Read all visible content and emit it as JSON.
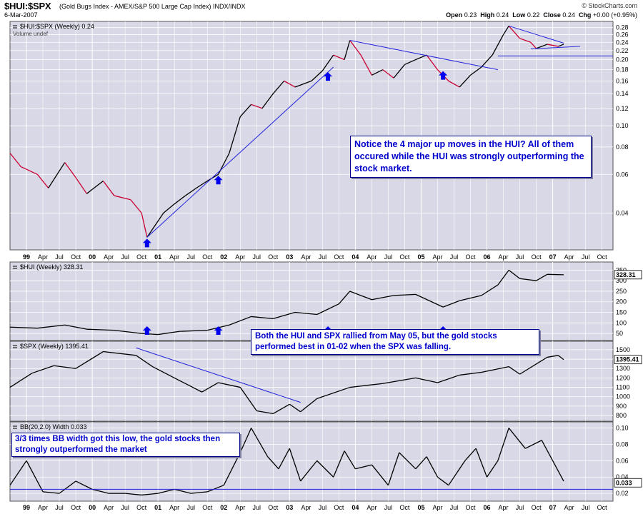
{
  "header": {
    "symbol": "$HUI:$SPX",
    "subtitle": "(Gold Bugs Index - AMEX/S&P 500 Large Cap Index) INDX/INDX",
    "date": "6-Mar-2007",
    "brand": "© StockCharts.com",
    "open_label": "Open",
    "open": "0.23",
    "high_label": "High",
    "high": "0.24",
    "low_label": "Low",
    "low": "0.22",
    "close_label": "Close",
    "close": "0.24",
    "chg_label": "Chg",
    "chg": "+0.00 (+0.95%)"
  },
  "panels": {
    "ratio": {
      "label": "$HUI:$SPX (Weekly) 0.24",
      "volume_note": "Volume undef"
    },
    "hui": {
      "label": "$HUI (Weekly) 328.31",
      "last": "328.31"
    },
    "spx": {
      "label": "$SPX (Weekly) 1395.41",
      "last": "1395.41"
    },
    "bbw": {
      "label": "BB(20,2.0) Width 0.033",
      "last": "0.033"
    }
  },
  "notes": {
    "note1": "Notice the 4 major up moves in the HUI? All of them occured while the HUI was strongly outperforming the stock market.",
    "note2": "Both the HUI and SPX rallied from May 05, but the gold stocks performed best in 01-02 when the SPX was falling.",
    "note3": "3/3 times BB width got this low, the gold stocks then strongly outperformed the market"
  },
  "colors": {
    "background": "#d8d8e6",
    "grid": "#ffffff",
    "trendline": "#2222dd",
    "rising": "#000000",
    "falling": "#cc0033",
    "arrow": "#0000ee",
    "note_text": "#0000cc"
  },
  "chart_data": [
    {
      "type": "line",
      "title": "$HUI:$SPX (Weekly) 0.24",
      "scale": "log",
      "ylim": [
        0.028,
        0.29
      ],
      "yticks": [
        "0.28",
        "0.26",
        "0.24",
        "0.22",
        "0.20",
        "0.18",
        "0.16",
        "0.14",
        "0.12",
        "0.10",
        "0.08",
        "0.06",
        "0.04"
      ],
      "x": [
        "1998-10",
        "1998-12",
        "1999-03",
        "1999-05",
        "1999-08",
        "1999-10",
        "1999-12",
        "2000-03",
        "2000-05",
        "2000-08",
        "2000-10",
        "2000-11",
        "2001-02",
        "2001-04",
        "2001-06",
        "2001-08",
        "2001-10",
        "2001-12",
        "2002-02",
        "2002-04",
        "2002-06",
        "2002-08",
        "2002-10",
        "2002-12",
        "2003-02",
        "2003-05",
        "2003-07",
        "2003-09",
        "2003-11",
        "2003-12",
        "2004-02",
        "2004-04",
        "2004-06",
        "2004-08",
        "2004-10",
        "2004-12",
        "2005-02",
        "2005-04",
        "2005-06",
        "2005-08",
        "2005-10",
        "2005-12",
        "2006-02",
        "2006-04",
        "2006-05",
        "2006-07",
        "2006-09",
        "2006-10",
        "2006-12",
        "2007-02",
        "2007-03"
      ],
      "values": [
        0.075,
        0.065,
        0.06,
        0.052,
        0.068,
        0.058,
        0.049,
        0.056,
        0.048,
        0.046,
        0.04,
        0.031,
        0.04,
        0.044,
        0.048,
        0.052,
        0.056,
        0.06,
        0.075,
        0.11,
        0.125,
        0.12,
        0.14,
        0.16,
        0.15,
        0.16,
        0.178,
        0.21,
        0.2,
        0.245,
        0.21,
        0.17,
        0.18,
        0.165,
        0.19,
        0.2,
        0.21,
        0.18,
        0.16,
        0.15,
        0.17,
        0.185,
        0.21,
        0.26,
        0.285,
        0.25,
        0.24,
        0.225,
        0.235,
        0.23,
        0.235
      ],
      "trendlines": [
        {
          "from": [
            "2000-11",
            0.031
          ],
          "to": [
            "2003-09",
            0.185
          ]
        },
        {
          "from": [
            "2003-12",
            0.245
          ],
          "to": [
            "2006-03",
            0.18
          ]
        },
        {
          "from": [
            "2006-03",
            0.208
          ],
          "to": [
            "2007-12",
            0.208
          ]
        },
        {
          "from": [
            "2006-05",
            0.285
          ],
          "to": [
            "2007-03",
            0.238
          ]
        },
        {
          "from": [
            "2006-09",
            0.224
          ],
          "to": [
            "2007-06",
            0.23
          ]
        }
      ],
      "markers": [
        "2000-11",
        "2001-12",
        "2003-08",
        "2005-05"
      ]
    },
    {
      "type": "line",
      "title": "$HUI (Weekly) 328.31",
      "ylim": [
        30,
        375
      ],
      "yticks": [
        "350",
        "300",
        "250",
        "200",
        "150",
        "100",
        "50"
      ],
      "x": [
        "1998-10",
        "1999-03",
        "1999-08",
        "1999-12",
        "2000-05",
        "2000-10",
        "2001-01",
        "2001-05",
        "2001-10",
        "2002-02",
        "2002-06",
        "2002-10",
        "2003-02",
        "2003-06",
        "2003-10",
        "2003-12",
        "2004-04",
        "2004-08",
        "2004-12",
        "2005-05",
        "2005-08",
        "2005-12",
        "2006-03",
        "2006-05",
        "2006-07",
        "2006-10",
        "2006-12",
        "2007-03"
      ],
      "values": [
        80,
        75,
        90,
        70,
        65,
        50,
        45,
        60,
        65,
        90,
        130,
        120,
        150,
        140,
        190,
        250,
        210,
        230,
        235,
        175,
        205,
        230,
        280,
        350,
        310,
        300,
        330,
        328
      ],
      "markers": [
        "2000-11",
        "2001-12",
        "2003-08",
        "2005-05"
      ]
    },
    {
      "type": "line",
      "title": "$SPX (Weekly) 1395.41",
      "ylim": [
        770,
        1560
      ],
      "yticks": [
        "1500",
        "1400",
        "1300",
        "1200",
        "1100",
        "1000",
        "900",
        "800"
      ],
      "x": [
        "1998-10",
        "1999-02",
        "1999-06",
        "1999-10",
        "2000-03",
        "2000-09",
        "2000-12",
        "2001-04",
        "2001-09",
        "2001-12",
        "2002-04",
        "2002-07",
        "2002-10",
        "2003-01",
        "2003-03",
        "2003-06",
        "2003-12",
        "2004-06",
        "2004-12",
        "2005-04",
        "2005-08",
        "2005-12",
        "2006-05",
        "2006-07",
        "2006-12",
        "2007-02",
        "2007-03"
      ],
      "values": [
        1100,
        1250,
        1330,
        1300,
        1480,
        1440,
        1320,
        1200,
        1050,
        1150,
        1100,
        850,
        820,
        920,
        840,
        980,
        1100,
        1140,
        1200,
        1150,
        1230,
        1260,
        1320,
        1240,
        1420,
        1440,
        1395
      ],
      "trendlines": [
        {
          "from": [
            "2000-09",
            1520
          ],
          "to": [
            "2003-03",
            940
          ]
        }
      ]
    },
    {
      "type": "line",
      "title": "BB(20,2.0) Width 0.033",
      "ylim": [
        0.014,
        0.104
      ],
      "yticks": [
        "0.10",
        "0.08",
        "0.06",
        "0.04",
        "0.02"
      ],
      "x": [
        "1998-10",
        "1999-01",
        "1999-04",
        "1999-07",
        "1999-10",
        "2000-01",
        "2000-04",
        "2000-07",
        "2000-10",
        "2001-01",
        "2001-04",
        "2001-07",
        "2001-10",
        "2002-01",
        "2002-04",
        "2002-06",
        "2002-09",
        "2002-11",
        "2003-01",
        "2003-03",
        "2003-06",
        "2003-09",
        "2003-11",
        "2004-01",
        "2004-04",
        "2004-07",
        "2004-09",
        "2004-12",
        "2005-02",
        "2005-04",
        "2005-06",
        "2005-09",
        "2005-11",
        "2006-01",
        "2006-03",
        "2006-05",
        "2006-08",
        "2006-11",
        "2007-01",
        "2007-03"
      ],
      "values": [
        0.03,
        0.06,
        0.022,
        0.02,
        0.035,
        0.025,
        0.02,
        0.02,
        0.018,
        0.02,
        0.025,
        0.02,
        0.022,
        0.03,
        0.07,
        0.1,
        0.065,
        0.05,
        0.075,
        0.035,
        0.06,
        0.04,
        0.072,
        0.05,
        0.055,
        0.03,
        0.07,
        0.05,
        0.065,
        0.04,
        0.03,
        0.06,
        0.075,
        0.04,
        0.06,
        0.1,
        0.075,
        0.085,
        0.06,
        0.035
      ],
      "baseline": 0.025
    }
  ],
  "time_axis": {
    "start": "1998-10",
    "end": "2007-12",
    "labels": [
      {
        "t": "1999-01",
        "label": "99",
        "bold": true
      },
      {
        "t": "1999-04",
        "label": "Apr"
      },
      {
        "t": "1999-07",
        "label": "Jul"
      },
      {
        "t": "1999-10",
        "label": "Oct"
      },
      {
        "t": "2000-01",
        "label": "00",
        "bold": true
      },
      {
        "t": "2000-04",
        "label": "Apr"
      },
      {
        "t": "2000-07",
        "label": "Jul"
      },
      {
        "t": "2000-10",
        "label": "Oct"
      },
      {
        "t": "2001-01",
        "label": "01",
        "bold": true
      },
      {
        "t": "2001-04",
        "label": "Apr"
      },
      {
        "t": "2001-07",
        "label": "Jul"
      },
      {
        "t": "2001-10",
        "label": "Oct"
      },
      {
        "t": "2002-01",
        "label": "02",
        "bold": true
      },
      {
        "t": "2002-04",
        "label": "Apr"
      },
      {
        "t": "2002-07",
        "label": "Jul"
      },
      {
        "t": "2002-10",
        "label": "Oct"
      },
      {
        "t": "2003-01",
        "label": "03",
        "bold": true
      },
      {
        "t": "2003-04",
        "label": "Apr"
      },
      {
        "t": "2003-07",
        "label": "Jul"
      },
      {
        "t": "2003-10",
        "label": "Oct"
      },
      {
        "t": "2004-01",
        "label": "04",
        "bold": true
      },
      {
        "t": "2004-04",
        "label": "Apr"
      },
      {
        "t": "2004-07",
        "label": "Jul"
      },
      {
        "t": "2004-10",
        "label": "Oct"
      },
      {
        "t": "2005-01",
        "label": "05",
        "bold": true
      },
      {
        "t": "2005-04",
        "label": "Apr"
      },
      {
        "t": "2005-07",
        "label": "Jul"
      },
      {
        "t": "2005-10",
        "label": "Oct"
      },
      {
        "t": "2006-01",
        "label": "06",
        "bold": true
      },
      {
        "t": "2006-04",
        "label": "Apr"
      },
      {
        "t": "2006-07",
        "label": "Jul"
      },
      {
        "t": "2006-10",
        "label": "Oct"
      },
      {
        "t": "2007-01",
        "label": "07",
        "bold": true
      },
      {
        "t": "2007-04",
        "label": "Apr"
      },
      {
        "t": "2007-07",
        "label": "Jul"
      },
      {
        "t": "2007-10",
        "label": "Oct"
      }
    ]
  }
}
